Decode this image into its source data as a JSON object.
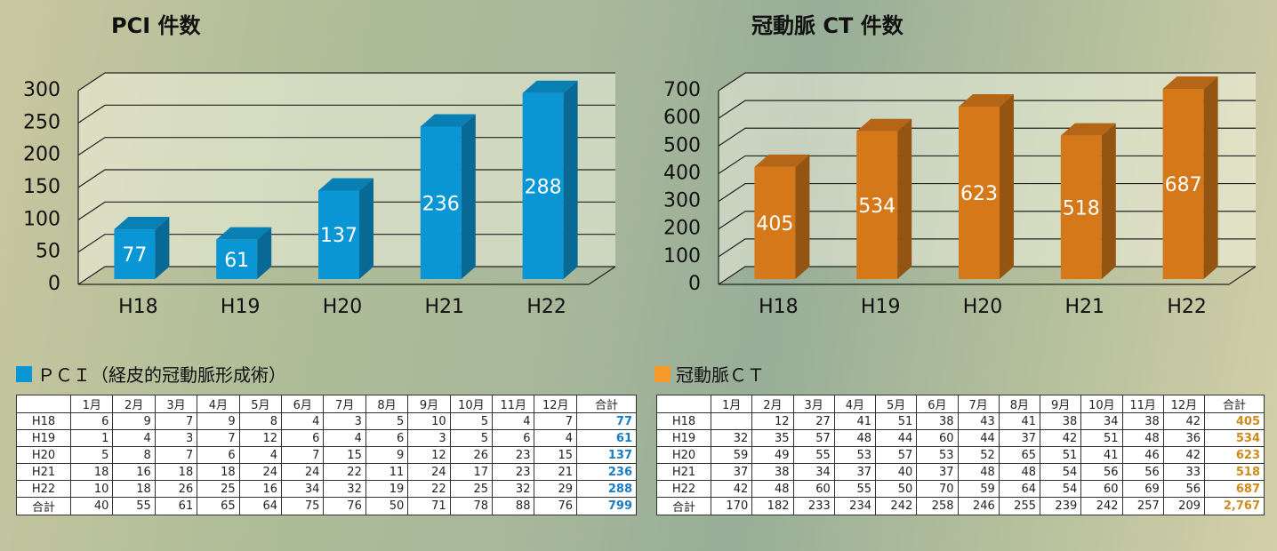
{
  "chart_data": [
    {
      "type": "bar3d",
      "title": "PCI 件数",
      "categories": [
        "H18",
        "H19",
        "H20",
        "H21",
        "H22"
      ],
      "values": [
        77,
        61,
        137,
        236,
        288
      ],
      "color": "#0a96d4",
      "ylim": [
        0,
        300
      ],
      "yticks": [
        0,
        50,
        100,
        150,
        200,
        250,
        300
      ],
      "grid": true
    },
    {
      "type": "bar3d",
      "title": "冠動脈 CT 件数",
      "categories": [
        "H18",
        "H19",
        "H20",
        "H21",
        "H22"
      ],
      "values": [
        405,
        534,
        623,
        518,
        687
      ],
      "color": "#d4781a",
      "ylim": [
        0,
        700
      ],
      "yticks": [
        0,
        100,
        200,
        300,
        400,
        500,
        600,
        700
      ],
      "grid": true
    }
  ],
  "tables": [
    {
      "title": "ＰＣＩ（経皮的冠動脈形成術）",
      "header": [
        "1月",
        "2月",
        "3月",
        "4月",
        "5月",
        "6月",
        "7月",
        "8月",
        "9月",
        "10月",
        "11月",
        "12月",
        "合計"
      ],
      "rows": [
        {
          "label": "H18",
          "cells": [
            6,
            9,
            7,
            9,
            8,
            4,
            3,
            5,
            10,
            5,
            4,
            7
          ],
          "total": 77
        },
        {
          "label": "H19",
          "cells": [
            1,
            4,
            3,
            7,
            12,
            6,
            4,
            6,
            3,
            5,
            6,
            4
          ],
          "total": 61
        },
        {
          "label": "H20",
          "cells": [
            5,
            8,
            7,
            6,
            4,
            7,
            15,
            9,
            12,
            26,
            23,
            15
          ],
          "total": 137
        },
        {
          "label": "H21",
          "cells": [
            18,
            16,
            18,
            18,
            24,
            24,
            22,
            11,
            24,
            17,
            23,
            21
          ],
          "total": 236
        },
        {
          "label": "H22",
          "cells": [
            10,
            18,
            26,
            25,
            16,
            34,
            32,
            19,
            22,
            25,
            32,
            29
          ],
          "total": 288
        },
        {
          "label": "合計",
          "cells": [
            40,
            55,
            61,
            65,
            64,
            75,
            76,
            50,
            71,
            78,
            88,
            76
          ],
          "total": 799
        }
      ]
    },
    {
      "title": "冠動脈ＣＴ",
      "header": [
        "1月",
        "2月",
        "3月",
        "4月",
        "5月",
        "6月",
        "7月",
        "8月",
        "9月",
        "10月",
        "11月",
        "12月",
        "合計"
      ],
      "rows": [
        {
          "label": "H18",
          "cells": [
            null,
            12,
            27,
            41,
            51,
            38,
            43,
            41,
            38,
            34,
            38,
            42
          ],
          "total": 405
        },
        {
          "label": "H19",
          "cells": [
            32,
            35,
            57,
            48,
            44,
            60,
            44,
            37,
            42,
            51,
            48,
            36
          ],
          "total": 534
        },
        {
          "label": "H20",
          "cells": [
            59,
            49,
            55,
            53,
            57,
            53,
            52,
            65,
            51,
            41,
            46,
            42
          ],
          "total": 623
        },
        {
          "label": "H21",
          "cells": [
            37,
            38,
            34,
            37,
            40,
            37,
            48,
            48,
            54,
            56,
            56,
            33
          ],
          "total": 518
        },
        {
          "label": "H22",
          "cells": [
            42,
            48,
            60,
            55,
            50,
            70,
            59,
            64,
            54,
            60,
            69,
            56
          ],
          "total": 687
        },
        {
          "label": "合計",
          "cells": [
            170,
            182,
            233,
            234,
            242,
            258,
            246,
            255,
            239,
            242,
            257,
            209
          ],
          "total": "2,767"
        }
      ]
    }
  ]
}
